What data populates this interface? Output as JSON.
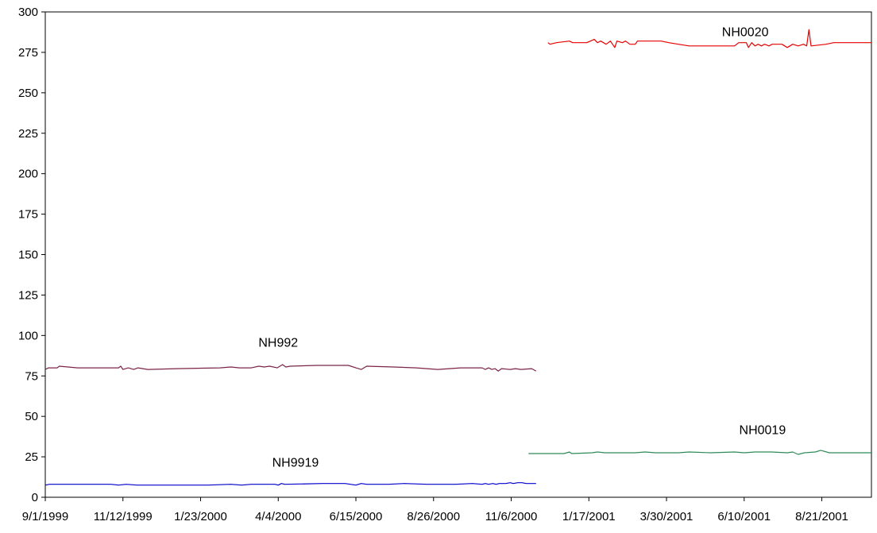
{
  "chart_data": {
    "type": "line",
    "title": "",
    "xlabel": "",
    "ylabel": "",
    "ylim": [
      0,
      300
    ],
    "yticks": [
      0,
      25,
      50,
      75,
      100,
      125,
      150,
      175,
      200,
      225,
      250,
      275,
      300
    ],
    "xlim": [
      "1999-09-01",
      "2001-10-06"
    ],
    "xtick_labels": [
      "9/1/1999",
      "11/12/1999",
      "1/23/2000",
      "4/4/2000",
      "6/15/2000",
      "8/26/2000",
      "11/6/2000",
      "1/17/2001",
      "3/30/2001",
      "6/10/2001",
      "8/21/2001"
    ],
    "grid": false,
    "legend": "none",
    "series": [
      {
        "name": "NH992",
        "color": "#7b2447",
        "points": [
          [
            "1999-09-01",
            79
          ],
          [
            "1999-09-04",
            80
          ],
          [
            "1999-09-12",
            80
          ],
          [
            "1999-09-14",
            81
          ],
          [
            "1999-10-01",
            80
          ],
          [
            "1999-11-08",
            80
          ],
          [
            "1999-11-10",
            81
          ],
          [
            "1999-11-12",
            79
          ],
          [
            "1999-11-17",
            80
          ],
          [
            "1999-11-22",
            79
          ],
          [
            "1999-11-26",
            80
          ],
          [
            "1999-12-05",
            79
          ],
          [
            "2000-01-01",
            79.5
          ],
          [
            "2000-02-10",
            80
          ],
          [
            "2000-02-20",
            80.5
          ],
          [
            "2000-02-28",
            80
          ],
          [
            "2000-03-10",
            80
          ],
          [
            "2000-03-17",
            81
          ],
          [
            "2000-03-22",
            80.5
          ],
          [
            "2000-03-27",
            81
          ],
          [
            "2000-04-03",
            80
          ],
          [
            "2000-04-08",
            82
          ],
          [
            "2000-04-11",
            80.5
          ],
          [
            "2000-04-15",
            81
          ],
          [
            "2000-05-10",
            81.5
          ],
          [
            "2000-06-08",
            81.5
          ],
          [
            "2000-06-15",
            80
          ],
          [
            "2000-06-20",
            79
          ],
          [
            "2000-06-25",
            81
          ],
          [
            "2000-07-20",
            80.5
          ],
          [
            "2000-08-10",
            80
          ],
          [
            "2000-08-20",
            79.5
          ],
          [
            "2000-08-30",
            79
          ],
          [
            "2000-09-20",
            80
          ],
          [
            "2000-10-10",
            80
          ],
          [
            "2000-10-13",
            79
          ],
          [
            "2000-10-16",
            80
          ],
          [
            "2000-10-19",
            79
          ],
          [
            "2000-10-22",
            79.5
          ],
          [
            "2000-10-25",
            78
          ],
          [
            "2000-10-28",
            79.5
          ],
          [
            "2000-11-05",
            79
          ],
          [
            "2000-11-10",
            79.5
          ],
          [
            "2000-11-15",
            79
          ],
          [
            "2000-11-25",
            79.5
          ],
          [
            "2000-11-29",
            78
          ]
        ]
      },
      {
        "name": "NH9919",
        "color": "#0000cc",
        "points": [
          [
            "1999-09-01",
            7.5
          ],
          [
            "1999-09-05",
            8
          ],
          [
            "1999-11-01",
            8
          ],
          [
            "1999-11-08",
            7.5
          ],
          [
            "1999-11-15",
            8
          ],
          [
            "1999-11-25",
            7.5
          ],
          [
            "2000-01-01",
            7.5
          ],
          [
            "2000-01-30",
            7.5
          ],
          [
            "2000-02-20",
            8
          ],
          [
            "2000-03-01",
            7.5
          ],
          [
            "2000-03-10",
            8
          ],
          [
            "2000-04-01",
            8
          ],
          [
            "2000-04-04",
            7.5
          ],
          [
            "2000-04-07",
            8.5
          ],
          [
            "2000-04-10",
            8
          ],
          [
            "2000-05-15",
            8.5
          ],
          [
            "2000-06-05",
            8.5
          ],
          [
            "2000-06-10",
            8
          ],
          [
            "2000-06-15",
            7.5
          ],
          [
            "2000-06-20",
            8.5
          ],
          [
            "2000-06-25",
            8
          ],
          [
            "2000-07-15",
            8
          ],
          [
            "2000-07-30",
            8.5
          ],
          [
            "2000-08-20",
            8
          ],
          [
            "2000-09-15",
            8
          ],
          [
            "2000-10-01",
            8.5
          ],
          [
            "2000-10-10",
            8
          ],
          [
            "2000-10-13",
            8.5
          ],
          [
            "2000-10-16",
            8
          ],
          [
            "2000-10-20",
            8.5
          ],
          [
            "2000-10-23",
            8
          ],
          [
            "2000-10-26",
            8.5
          ],
          [
            "2000-11-01",
            8.5
          ],
          [
            "2000-11-05",
            9
          ],
          [
            "2000-11-08",
            8.5
          ],
          [
            "2000-11-12",
            9
          ],
          [
            "2000-11-16",
            9
          ],
          [
            "2000-11-20",
            8.5
          ],
          [
            "2000-11-29",
            8.5
          ]
        ]
      },
      {
        "name": "NH0019",
        "color": "#2e8b57",
        "points": [
          [
            "2000-11-22",
            27
          ],
          [
            "2000-12-25",
            27
          ],
          [
            "2000-12-30",
            28
          ],
          [
            "2001-01-01",
            27
          ],
          [
            "2001-01-20",
            27.5
          ],
          [
            "2001-01-25",
            28
          ],
          [
            "2001-02-01",
            27.5
          ],
          [
            "2001-03-01",
            27.5
          ],
          [
            "2001-03-10",
            28
          ],
          [
            "2001-03-20",
            27.5
          ],
          [
            "2001-04-10",
            27.5
          ],
          [
            "2001-04-20",
            28
          ],
          [
            "2001-05-10",
            27.5
          ],
          [
            "2001-06-01",
            28
          ],
          [
            "2001-06-10",
            27.5
          ],
          [
            "2001-06-20",
            28
          ],
          [
            "2001-07-05",
            28
          ],
          [
            "2001-07-20",
            27.5
          ],
          [
            "2001-07-25",
            28
          ],
          [
            "2001-07-30",
            26.5
          ],
          [
            "2001-08-05",
            27.5
          ],
          [
            "2001-08-15",
            28
          ],
          [
            "2001-08-20",
            29
          ],
          [
            "2001-08-28",
            27.5
          ],
          [
            "2001-10-06",
            27.5
          ]
        ]
      },
      {
        "name": "NH0020",
        "color": "#e60000",
        "points": [
          [
            "2000-12-10",
            281
          ],
          [
            "2000-12-12",
            280
          ],
          [
            "2000-12-18",
            281
          ],
          [
            "2000-12-30",
            282
          ],
          [
            "2001-01-02",
            281
          ],
          [
            "2001-01-15",
            281
          ],
          [
            "2001-01-22",
            283
          ],
          [
            "2001-01-25",
            281
          ],
          [
            "2001-01-28",
            282
          ],
          [
            "2001-02-02",
            280
          ],
          [
            "2001-02-06",
            282
          ],
          [
            "2001-02-10",
            278
          ],
          [
            "2001-02-12",
            282
          ],
          [
            "2001-02-17",
            281
          ],
          [
            "2001-02-20",
            282
          ],
          [
            "2001-02-24",
            280
          ],
          [
            "2001-03-01",
            280
          ],
          [
            "2001-03-03",
            282
          ],
          [
            "2001-03-25",
            282
          ],
          [
            "2001-04-01",
            281
          ],
          [
            "2001-04-10",
            280
          ],
          [
            "2001-04-20",
            279
          ],
          [
            "2001-05-10",
            279
          ],
          [
            "2001-06-01",
            279
          ],
          [
            "2001-06-05",
            281
          ],
          [
            "2001-06-12",
            281
          ],
          [
            "2001-06-14",
            278
          ],
          [
            "2001-06-17",
            281
          ],
          [
            "2001-06-20",
            279
          ],
          [
            "2001-06-23",
            280
          ],
          [
            "2001-06-26",
            279
          ],
          [
            "2001-06-29",
            280
          ],
          [
            "2001-07-03",
            279
          ],
          [
            "2001-07-06",
            280
          ],
          [
            "2001-07-15",
            280
          ],
          [
            "2001-07-20",
            278
          ],
          [
            "2001-07-25",
            280
          ],
          [
            "2001-07-30",
            279
          ],
          [
            "2001-08-04",
            280
          ],
          [
            "2001-08-07",
            279
          ],
          [
            "2001-08-09",
            289
          ],
          [
            "2001-08-11",
            279
          ],
          [
            "2001-08-25",
            280
          ],
          [
            "2001-09-01",
            281
          ],
          [
            "2001-10-06",
            281
          ]
        ]
      }
    ],
    "annotations": [
      {
        "text": "NH992",
        "x": "2000-04-04",
        "y": 93
      },
      {
        "text": "NH9919",
        "x": "2000-04-20",
        "y": 19
      },
      {
        "text": "NH0019",
        "x": "2001-06-27",
        "y": 39
      },
      {
        "text": "NH0020",
        "x": "2001-06-11",
        "y": 285
      }
    ]
  }
}
